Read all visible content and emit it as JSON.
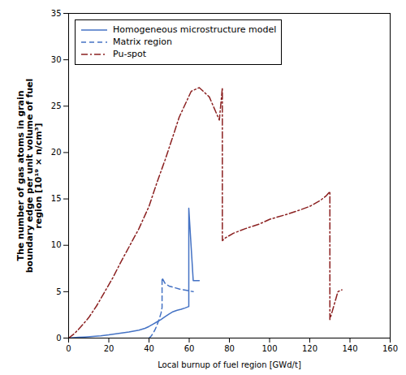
{
  "chart_data": {
    "type": "line",
    "xlabel": "Local burnup of fuel region [GWd/t]",
    "ylabel": "The number of gas atoms in grain\nboundary edge per unit volume of fuel\nregion [10¹⁹ × n/cm³]",
    "xlim": [
      0,
      160
    ],
    "ylim": [
      0,
      35
    ],
    "xticks": [
      0,
      20,
      40,
      60,
      80,
      100,
      120,
      140,
      160
    ],
    "yticks": [
      0,
      5,
      10,
      15,
      20,
      25,
      30,
      35
    ],
    "grid": false,
    "legend": "upper left",
    "series": [
      {
        "name": "Homogeneous microstructure model",
        "color": "#4472C4",
        "line_style": "solid",
        "x": [
          0,
          2,
          5,
          8,
          12,
          16,
          20,
          25,
          30,
          35,
          38,
          40,
          42,
          44,
          46,
          48,
          50,
          52,
          54,
          56,
          58,
          59.8,
          59.8,
          62,
          65
        ],
        "values": [
          0,
          0.05,
          0.08,
          0.12,
          0.18,
          0.25,
          0.35,
          0.5,
          0.65,
          0.85,
          1.05,
          1.25,
          1.5,
          1.75,
          2.0,
          2.3,
          2.6,
          2.85,
          3.0,
          3.1,
          3.25,
          3.4,
          14.0,
          6.2,
          6.2
        ]
      },
      {
        "name": "Matrix region",
        "color": "#4472C4",
        "line_style": "dashed",
        "x": [
          40,
          41,
          42,
          43,
          44,
          45,
          46,
          46.5,
          46.5,
          48,
          50,
          55,
          62
        ],
        "values": [
          0,
          0.2,
          0.5,
          0.9,
          1.4,
          2.0,
          2.7,
          3.3,
          6.5,
          5.9,
          5.6,
          5.3,
          5.0
        ]
      },
      {
        "name": "Pu-spot",
        "color": "#8B2020",
        "line_style": "dashdot",
        "x": [
          0,
          3,
          6,
          10,
          14,
          18,
          22,
          26,
          30,
          35,
          40,
          44,
          48,
          52,
          55,
          58,
          61,
          65,
          70,
          73,
          75,
          76.5,
          76.5,
          78,
          82,
          88,
          95,
          100,
          108,
          115,
          120,
          125,
          128,
          130,
          130,
          132,
          134,
          136
        ],
        "values": [
          0,
          0.5,
          1.2,
          2.2,
          3.5,
          5.0,
          6.5,
          8.2,
          9.8,
          11.8,
          14.2,
          16.8,
          19.2,
          21.8,
          23.8,
          25.2,
          26.6,
          27.0,
          26.0,
          24.5,
          23.5,
          27.0,
          10.5,
          10.8,
          11.3,
          11.8,
          12.3,
          12.8,
          13.3,
          13.8,
          14.2,
          14.8,
          15.3,
          15.8,
          2.0,
          3.5,
          5.0,
          5.2
        ]
      }
    ]
  }
}
